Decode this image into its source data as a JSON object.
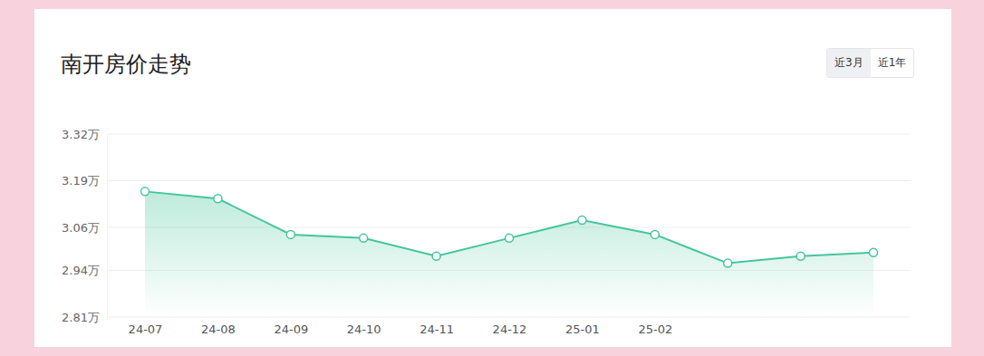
{
  "chart_data": {
    "type": "area",
    "title": "南开房价走势",
    "categories": [
      "24-07",
      "24-08",
      "24-09",
      "24-10",
      "24-11",
      "24-12",
      "25-01",
      "25-02",
      null,
      null,
      null
    ],
    "values": [
      3.16,
      3.14,
      3.04,
      3.03,
      2.98,
      3.03,
      3.08,
      3.04,
      2.96,
      2.98,
      2.99
    ],
    "color": "#45c699",
    "marker": "circle",
    "line_style": "solid",
    "ylim": [
      2.81,
      3.32
    ],
    "yticks": [
      {
        "value": 2.81,
        "label": "2.81万"
      },
      {
        "value": 2.94,
        "label": "2.94万"
      },
      {
        "value": 3.06,
        "label": "3.06万"
      },
      {
        "value": 3.19,
        "label": "3.19万"
      },
      {
        "value": 3.32,
        "label": "3.32万"
      }
    ],
    "grid": true
  },
  "buttons": [
    "近3月",
    "近1年"
  ]
}
